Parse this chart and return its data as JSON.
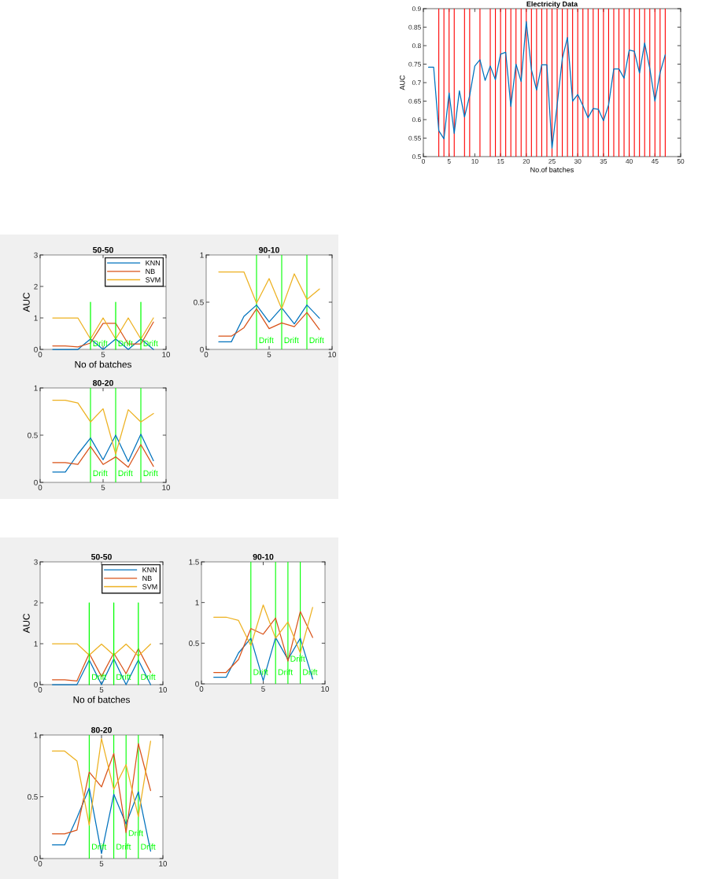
{
  "chart_data": [
    {
      "type": "line",
      "title": "Electricity Data",
      "xlabel": "No.of batches",
      "ylabel": "AUC",
      "x": [
        1,
        2,
        3,
        4,
        5,
        6,
        7,
        8,
        9,
        10,
        11,
        12,
        13,
        14,
        15,
        16,
        17,
        18,
        19,
        20,
        21,
        22,
        23,
        24,
        25,
        26,
        27,
        28,
        29,
        30,
        31,
        32,
        33,
        34,
        35,
        36,
        37,
        38,
        39,
        40,
        41,
        42,
        43,
        44,
        45,
        46,
        47
      ],
      "series": [
        {
          "color": "#0072bd",
          "values": [
            0.742,
            0.742,
            0.57,
            0.548,
            0.672,
            0.563,
            0.678,
            0.607,
            0.665,
            0.745,
            0.762,
            0.706,
            0.745,
            0.708,
            0.777,
            0.782,
            0.636,
            0.75,
            0.703,
            0.865,
            0.735,
            0.68,
            0.748,
            0.748,
            0.523,
            0.64,
            0.765,
            0.822,
            0.65,
            0.668,
            0.638,
            0.605,
            0.63,
            0.628,
            0.597,
            0.64,
            0.737,
            0.737,
            0.712,
            0.788,
            0.785,
            0.726,
            0.807,
            0.738,
            0.65,
            0.727,
            0.775
          ]
        }
      ],
      "ref_lines": [
        {
          "axis": "x",
          "value": 3,
          "color": "#ff0000"
        },
        {
          "axis": "x",
          "value": 4,
          "color": "#ff0000"
        },
        {
          "axis": "x",
          "value": 5,
          "color": "#ff0000"
        },
        {
          "axis": "x",
          "value": 6,
          "color": "#ff0000"
        },
        {
          "axis": "x",
          "value": 8,
          "color": "#ff0000"
        },
        {
          "axis": "x",
          "value": 9,
          "color": "#ff0000"
        },
        {
          "axis": "x",
          "value": 11,
          "color": "#ff0000"
        },
        {
          "axis": "x",
          "value": 13,
          "color": "#ff0000"
        },
        {
          "axis": "x",
          "value": 14,
          "color": "#ff0000"
        },
        {
          "axis": "x",
          "value": 15,
          "color": "#ff0000"
        },
        {
          "axis": "x",
          "value": 16,
          "color": "#ff0000"
        },
        {
          "axis": "x",
          "value": 17,
          "color": "#ff0000"
        },
        {
          "axis": "x",
          "value": 18,
          "color": "#ff0000"
        },
        {
          "axis": "x",
          "value": 19,
          "color": "#ff0000"
        },
        {
          "axis": "x",
          "value": 20,
          "color": "#ff0000"
        },
        {
          "axis": "x",
          "value": 21,
          "color": "#ff0000"
        },
        {
          "axis": "x",
          "value": 22,
          "color": "#ff0000"
        },
        {
          "axis": "x",
          "value": 23,
          "color": "#ff0000"
        },
        {
          "axis": "x",
          "value": 24,
          "color": "#ff0000"
        },
        {
          "axis": "x",
          "value": 25,
          "color": "#ff0000"
        },
        {
          "axis": "x",
          "value": 26,
          "color": "#ff0000"
        },
        {
          "axis": "x",
          "value": 27,
          "color": "#ff0000"
        },
        {
          "axis": "x",
          "value": 28,
          "color": "#ff0000"
        },
        {
          "axis": "x",
          "value": 29,
          "color": "#ff0000"
        },
        {
          "axis": "x",
          "value": 30,
          "color": "#ff0000"
        },
        {
          "axis": "x",
          "value": 31,
          "color": "#ff0000"
        },
        {
          "axis": "x",
          "value": 32,
          "color": "#ff0000"
        },
        {
          "axis": "x",
          "value": 33,
          "color": "#ff0000"
        },
        {
          "axis": "x",
          "value": 34,
          "color": "#ff0000"
        },
        {
          "axis": "x",
          "value": 35,
          "color": "#ff0000"
        },
        {
          "axis": "x",
          "value": 36,
          "color": "#ff0000"
        },
        {
          "axis": "x",
          "value": 37,
          "color": "#ff0000"
        },
        {
          "axis": "x",
          "value": 38,
          "color": "#ff0000"
        },
        {
          "axis": "x",
          "value": 39,
          "color": "#ff0000"
        },
        {
          "axis": "x",
          "value": 40,
          "color": "#ff0000"
        },
        {
          "axis": "x",
          "value": 41,
          "color": "#ff0000"
        },
        {
          "axis": "x",
          "value": 42,
          "color": "#ff0000"
        },
        {
          "axis": "x",
          "value": 43,
          "color": "#ff0000"
        },
        {
          "axis": "x",
          "value": 44,
          "color": "#ff0000"
        },
        {
          "axis": "x",
          "value": 45,
          "color": "#ff0000"
        },
        {
          "axis": "x",
          "value": 46,
          "color": "#ff0000"
        },
        {
          "axis": "x",
          "value": 47,
          "color": "#ff0000"
        }
      ],
      "xlim": [
        0,
        50
      ],
      "ylim": [
        0.5,
        0.9
      ],
      "xticks": [
        0,
        5,
        10,
        15,
        20,
        25,
        30,
        35,
        40,
        45,
        50
      ],
      "yticks": [
        0.5,
        0.55,
        0.6,
        0.65,
        0.7,
        0.75,
        0.8,
        0.85,
        0.9
      ]
    },
    {
      "type": "line",
      "title": "50-50",
      "xlabel": "No of batches",
      "ylabel": "AUC",
      "x": [
        1,
        2,
        3,
        4,
        5,
        6,
        7,
        8,
        9
      ],
      "series": [
        {
          "name": "KNN",
          "color": "#0072bd",
          "values": [
            0,
            0,
            0,
            0.33,
            0,
            0.33,
            0,
            0.33,
            0
          ]
        },
        {
          "name": "NB",
          "color": "#d95319",
          "values": [
            0.11,
            0.11,
            0.08,
            0.2,
            0.83,
            0.83,
            0.17,
            0.17,
            0.87
          ]
        },
        {
          "name": "SVM",
          "color": "#edb120",
          "values": [
            1,
            1,
            1,
            0.33,
            1,
            0.33,
            1,
            0.33,
            1
          ]
        },
        {
          "color": "#00ff00",
          "x": [
            4,
            4
          ],
          "values": [
            0,
            1.5
          ]
        },
        {
          "color": "#00ff00",
          "x": [
            6,
            6
          ],
          "values": [
            0,
            1.5
          ]
        },
        {
          "color": "#00ff00",
          "x": [
            8,
            8
          ],
          "values": [
            0,
            1.5
          ]
        }
      ],
      "annotations": [
        {
          "text": "Drift",
          "x": 4,
          "y": 0.17
        },
        {
          "text": "Drift",
          "x": 6,
          "y": 0.17
        },
        {
          "text": "Drift",
          "x": 8,
          "y": 0.17
        }
      ],
      "xlim": [
        0,
        10
      ],
      "ylim": [
        0,
        3
      ],
      "xticks": [
        0,
        5,
        10
      ],
      "yticks": [
        0,
        1,
        2,
        3
      ],
      "legend": "top right"
    },
    {
      "type": "line",
      "title": "90-10",
      "x": [
        1,
        2,
        3,
        4,
        5,
        6,
        7,
        8,
        9
      ],
      "series": [
        {
          "color": "#0072bd",
          "values": [
            0.08,
            0.08,
            0.35,
            0.47,
            0.29,
            0.44,
            0.27,
            0.47,
            0.33
          ]
        },
        {
          "color": "#d95319",
          "values": [
            0.14,
            0.14,
            0.23,
            0.43,
            0.22,
            0.28,
            0.24,
            0.39,
            0.21
          ]
        },
        {
          "color": "#edb120",
          "values": [
            0.82,
            0.82,
            0.82,
            0.49,
            0.75,
            0.43,
            0.8,
            0.53,
            0.64
          ]
        }
      ],
      "ref_lines": [
        {
          "axis": "x",
          "value": 4,
          "label": "Drift",
          "color": "#00ff00"
        },
        {
          "axis": "x",
          "value": 6,
          "label": "Drift",
          "color": "#00ff00"
        },
        {
          "axis": "x",
          "value": 8,
          "label": "Drift",
          "color": "#00ff00"
        }
      ],
      "xlim": [
        0,
        10
      ],
      "ylim": [
        0,
        1
      ],
      "xticks": [
        0,
        5,
        10
      ],
      "yticks": [
        0,
        0.5,
        1
      ]
    },
    {
      "type": "line",
      "title": "80-20",
      "x": [
        1,
        2,
        3,
        4,
        5,
        6,
        7,
        8,
        9
      ],
      "series": [
        {
          "color": "#0072bd",
          "values": [
            0.11,
            0.11,
            0.3,
            0.47,
            0.24,
            0.5,
            0.22,
            0.51,
            0.23
          ]
        },
        {
          "color": "#d95319",
          "values": [
            0.21,
            0.21,
            0.19,
            0.38,
            0.19,
            0.27,
            0.16,
            0.4,
            0.17
          ]
        },
        {
          "color": "#edb120",
          "values": [
            0.87,
            0.87,
            0.84,
            0.64,
            0.78,
            0.3,
            0.77,
            0.64,
            0.73
          ]
        }
      ],
      "ref_lines": [
        {
          "axis": "x",
          "value": 4,
          "label": "Drift",
          "color": "#00ff00"
        },
        {
          "axis": "x",
          "value": 6,
          "label": "Drift",
          "color": "#00ff00"
        },
        {
          "axis": "x",
          "value": 8,
          "label": "Drift",
          "color": "#00ff00"
        }
      ],
      "xlim": [
        0,
        10
      ],
      "ylim": [
        0,
        1
      ],
      "xticks": [
        0,
        5,
        10
      ],
      "yticks": [
        0,
        0.5,
        1
      ]
    },
    {
      "type": "line",
      "title": "50-50",
      "xlabel": "No of batches",
      "ylabel": "AUC",
      "x": [
        1,
        2,
        3,
        4,
        5,
        6,
        7,
        8,
        9
      ],
      "series": [
        {
          "name": "KNN",
          "color": "#0072bd",
          "values": [
            0,
            0,
            0,
            0.6,
            0,
            0.63,
            0,
            0.6,
            0
          ]
        },
        {
          "name": "NB",
          "color": "#d95319",
          "values": [
            0.12,
            0.12,
            0.09,
            0.76,
            0.2,
            0.77,
            0.27,
            0.88,
            0.3
          ]
        },
        {
          "name": "SVM",
          "color": "#edb120",
          "values": [
            1,
            1,
            1,
            0.72,
            0.99,
            0.72,
            0.99,
            0.7,
            0.99
          ]
        },
        {
          "color": "#00ff00",
          "x": [
            4,
            4
          ],
          "values": [
            0,
            2
          ]
        },
        {
          "color": "#00ff00",
          "x": [
            6,
            6
          ],
          "values": [
            0,
            2
          ]
        },
        {
          "color": "#00ff00",
          "x": [
            8,
            8
          ],
          "values": [
            0,
            2
          ]
        }
      ],
      "annotations": [
        {
          "text": "Drift",
          "x": 4,
          "y": 0.17
        },
        {
          "text": "Drift",
          "x": 6,
          "y": 0.17
        },
        {
          "text": "Drift",
          "x": 8,
          "y": 0.17
        }
      ],
      "xlim": [
        0,
        10
      ],
      "ylim": [
        0,
        3
      ],
      "xticks": [
        0,
        5,
        10
      ],
      "yticks": [
        0,
        1,
        2,
        3
      ],
      "legend": "top right"
    },
    {
      "type": "line",
      "title": "90-10",
      "x": [
        1,
        2,
        3,
        4,
        5,
        6,
        7,
        8,
        9
      ],
      "series": [
        {
          "color": "#0072bd",
          "values": [
            0.08,
            0.08,
            0.38,
            0.56,
            0.04,
            0.57,
            0.3,
            0.56,
            0.06
          ]
        },
        {
          "color": "#d95319",
          "values": [
            0.14,
            0.14,
            0.3,
            0.68,
            0.61,
            0.81,
            0.28,
            0.89,
            0.57
          ]
        },
        {
          "color": "#edb120",
          "values": [
            0.82,
            0.82,
            0.78,
            0.47,
            0.97,
            0.56,
            0.76,
            0.38,
            0.94
          ]
        }
      ],
      "ref_lines": [
        {
          "axis": "x",
          "value": 4,
          "label": "Drift",
          "color": "#00ff00"
        },
        {
          "axis": "x",
          "value": 6,
          "label": "Drift",
          "color": "#00ff00"
        },
        {
          "axis": "x",
          "value": 7,
          "label": "Drift",
          "color": "#00ff00"
        },
        {
          "axis": "x",
          "value": 8,
          "label": "Drift",
          "color": "#00ff00"
        }
      ],
      "xlim": [
        0,
        10
      ],
      "ylim": [
        0,
        1.5
      ],
      "xticks": [
        0,
        5,
        10
      ],
      "yticks": [
        0,
        0.5,
        1,
        1.5
      ]
    },
    {
      "type": "line",
      "title": "80-20",
      "x": [
        1,
        2,
        3,
        4,
        5,
        6,
        7,
        8,
        9
      ],
      "series": [
        {
          "color": "#0072bd",
          "values": [
            0.11,
            0.11,
            0.33,
            0.57,
            0.04,
            0.52,
            0.28,
            0.54,
            0.06
          ]
        },
        {
          "color": "#d95319",
          "values": [
            0.2,
            0.2,
            0.23,
            0.7,
            0.58,
            0.85,
            0.21,
            0.93,
            0.55
          ]
        },
        {
          "color": "#edb120",
          "values": [
            0.87,
            0.87,
            0.79,
            0.27,
            0.97,
            0.56,
            0.76,
            0.34,
            0.95
          ]
        }
      ],
      "ref_lines": [
        {
          "axis": "x",
          "value": 4,
          "label": "Drift",
          "color": "#00ff00"
        },
        {
          "axis": "x",
          "value": 6,
          "label": "Drift",
          "color": "#00ff00"
        },
        {
          "axis": "x",
          "value": 7,
          "label": "Drift",
          "color": "#00ff00"
        },
        {
          "axis": "x",
          "value": 8,
          "label": "Drift",
          "color": "#00ff00"
        }
      ],
      "xlim": [
        0,
        10
      ],
      "ylim": [
        0,
        1
      ],
      "xticks": [
        0,
        5,
        10
      ],
      "yticks": [
        0,
        0.5,
        1
      ]
    }
  ]
}
